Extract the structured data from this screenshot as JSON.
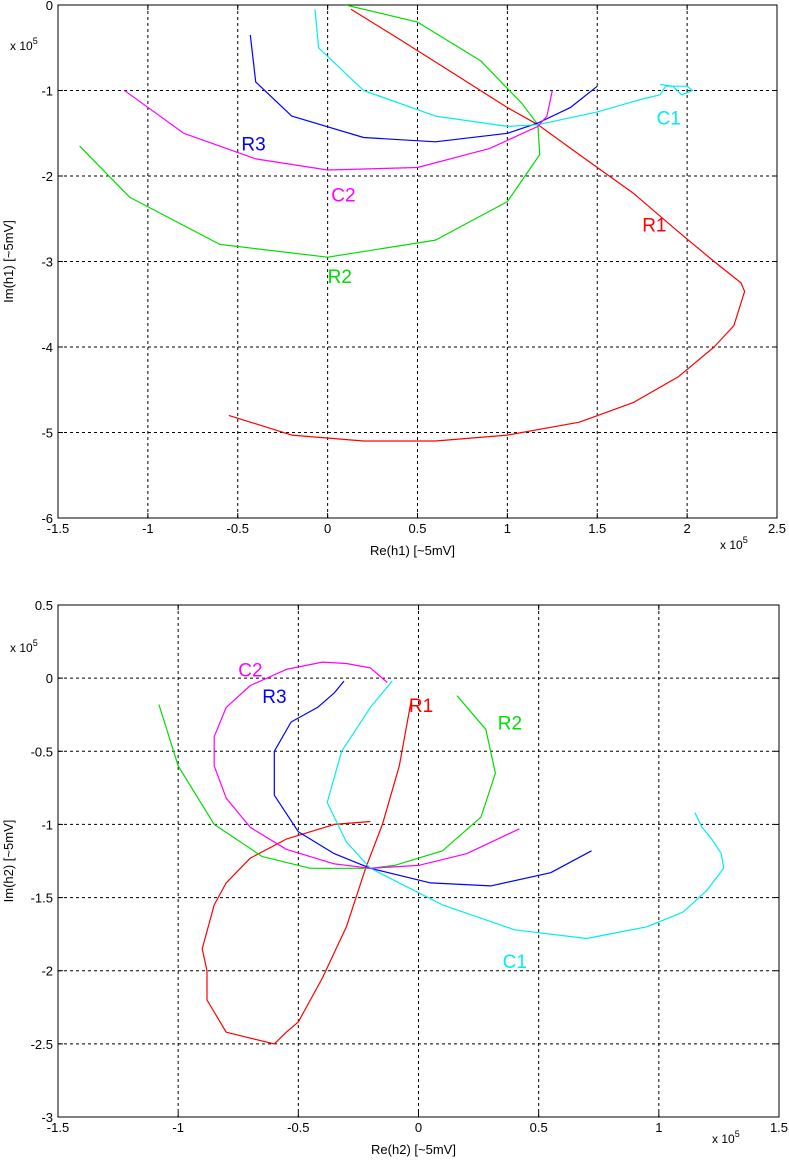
{
  "chart_data": [
    {
      "type": "line",
      "xlabel": "Re(h1)  [~5mV]",
      "ylabel": "Im(h1)  [~5mV]",
      "x_multiplier": "x 10",
      "x_multiplier_exp": "5",
      "y_multiplier": "x 10",
      "y_multiplier_exp": "5",
      "xlim": [
        -1.5,
        2.5
      ],
      "ylim": [
        -6,
        0
      ],
      "xticks": [
        -1.5,
        -1,
        -0.5,
        0,
        0.5,
        1,
        1.5,
        2,
        2.5
      ],
      "yticks": [
        -6,
        -5,
        -4,
        -3,
        -2,
        -1,
        0
      ],
      "grid": true,
      "series": [
        {
          "name": "R1",
          "color": "#ff0000",
          "label_at": [
            1.75,
            -2.65
          ],
          "x": [
            0.13,
            0.4,
            0.7,
            1.0,
            1.17,
            1.4,
            1.7,
            1.95,
            2.15,
            2.3,
            2.32,
            2.26,
            2.15,
            1.95,
            1.7,
            1.4,
            1.0,
            0.6,
            0.2,
            -0.2,
            -0.55
          ],
          "y": [
            -0.05,
            -0.4,
            -0.8,
            -1.2,
            -1.4,
            -1.75,
            -2.2,
            -2.65,
            -3.0,
            -3.25,
            -3.35,
            -3.75,
            -4.0,
            -4.35,
            -4.65,
            -4.88,
            -5.03,
            -5.1,
            -5.1,
            -5.03,
            -4.8
          ]
        },
        {
          "name": "R2",
          "color": "#00dd00",
          "label_at": [
            0.0,
            -3.25
          ],
          "x": [
            0.1,
            0.5,
            0.85,
            1.08,
            1.17,
            1.18,
            1.0,
            0.6,
            0.0,
            -0.6,
            -1.1,
            -1.38
          ],
          "y": [
            0.0,
            -0.2,
            -0.65,
            -1.15,
            -1.4,
            -1.75,
            -2.3,
            -2.75,
            -2.95,
            -2.8,
            -2.25,
            -1.65
          ]
        },
        {
          "name": "R3",
          "color": "#0000ff",
          "label_at": [
            -0.48,
            -1.7
          ],
          "x": [
            -0.43,
            -0.4,
            -0.2,
            0.2,
            0.6,
            1.0,
            1.17,
            1.35,
            1.5
          ],
          "y": [
            -0.35,
            -0.9,
            -1.3,
            -1.55,
            -1.6,
            -1.5,
            -1.38,
            -1.2,
            -0.95
          ]
        },
        {
          "name": "C1",
          "color": "#00eeee",
          "label_at": [
            1.83,
            -1.4
          ],
          "x": [
            -0.07,
            -0.05,
            0.2,
            0.6,
            1.0,
            1.17,
            1.5,
            1.75,
            1.85,
            1.88,
            2.0,
            2.03,
            1.97,
            1.92,
            1.85
          ],
          "y": [
            -0.05,
            -0.5,
            -1.0,
            -1.3,
            -1.42,
            -1.4,
            -1.25,
            -1.1,
            -1.05,
            -0.95,
            -0.95,
            -1.0,
            -1.05,
            -0.95,
            -0.93
          ]
        },
        {
          "name": "C2",
          "color": "#ff00ff",
          "label_at": [
            0.02,
            -2.3
          ],
          "x": [
            -1.13,
            -0.8,
            -0.4,
            0.0,
            0.5,
            0.9,
            1.17,
            1.22,
            1.25
          ],
          "y": [
            -1.0,
            -1.5,
            -1.8,
            -1.93,
            -1.9,
            -1.68,
            -1.42,
            -1.3,
            -1.0
          ]
        }
      ]
    },
    {
      "type": "line",
      "xlabel": "Re(h2)  [~5mV]",
      "ylabel": "Im(h2)  [~5mV]",
      "x_multiplier": "x 10",
      "x_multiplier_exp": "5",
      "y_multiplier": "x 10",
      "y_multiplier_exp": "5",
      "xlim": [
        -1.5,
        1.5
      ],
      "ylim": [
        -3,
        0.5
      ],
      "xticks": [
        -1.5,
        -1,
        -0.5,
        0,
        0.5,
        1,
        1.5
      ],
      "yticks": [
        -3,
        -2.5,
        -2,
        -1.5,
        -1,
        -0.5,
        0,
        0.5
      ],
      "grid": true,
      "series": [
        {
          "name": "R1",
          "color": "#ff0000",
          "label_at": [
            -0.04,
            -0.23
          ],
          "x": [
            -0.03,
            -0.08,
            -0.15,
            -0.22,
            -0.3,
            -0.4,
            -0.5,
            -0.55,
            -0.6,
            -0.8,
            -0.88,
            -0.88,
            -0.9,
            -0.85,
            -0.8,
            -0.7,
            -0.55,
            -0.35,
            -0.2
          ],
          "y": [
            -0.15,
            -0.6,
            -1.0,
            -1.3,
            -1.7,
            -2.05,
            -2.35,
            -2.42,
            -2.5,
            -2.42,
            -2.2,
            -2.0,
            -1.85,
            -1.55,
            -1.4,
            -1.23,
            -1.1,
            -1.0,
            -0.98
          ]
        },
        {
          "name": "R2",
          "color": "#00dd00",
          "label_at": [
            0.33,
            -0.35
          ],
          "x": [
            0.16,
            0.28,
            0.32,
            0.26,
            0.1,
            -0.1,
            -0.2,
            -0.45,
            -0.65,
            -0.85,
            -1.0,
            -1.08
          ],
          "y": [
            -0.12,
            -0.35,
            -0.65,
            -0.95,
            -1.18,
            -1.28,
            -1.3,
            -1.3,
            -1.22,
            -1.0,
            -0.6,
            -0.18
          ]
        },
        {
          "name": "R3",
          "color": "#0000ff",
          "label_at": [
            -0.65,
            -0.17
          ],
          "x": [
            -0.31,
            -0.35,
            -0.42,
            -0.53,
            -0.6,
            -0.6,
            -0.5,
            -0.35,
            -0.2,
            0.05,
            0.3,
            0.55,
            0.72
          ],
          "y": [
            -0.02,
            -0.1,
            -0.2,
            -0.3,
            -0.5,
            -0.8,
            -1.05,
            -1.2,
            -1.3,
            -1.4,
            -1.42,
            -1.33,
            -1.18
          ]
        },
        {
          "name": "C1",
          "color": "#00eeee",
          "label_at": [
            0.35,
            -1.98
          ],
          "x": [
            -0.11,
            -0.2,
            -0.32,
            -0.38,
            -0.3,
            -0.2,
            0.1,
            0.4,
            0.7,
            0.95,
            1.1,
            1.2,
            1.27,
            1.26,
            1.22,
            1.18,
            1.15
          ],
          "y": [
            -0.02,
            -0.2,
            -0.5,
            -0.85,
            -1.12,
            -1.3,
            -1.55,
            -1.72,
            -1.78,
            -1.7,
            -1.6,
            -1.45,
            -1.3,
            -1.2,
            -1.1,
            -1.02,
            -0.92
          ]
        },
        {
          "name": "C2",
          "color": "#ff00ff",
          "label_at": [
            -0.75,
            0.01
          ],
          "x": [
            -0.13,
            -0.2,
            -0.3,
            -0.4,
            -0.55,
            -0.7,
            -0.8,
            -0.85,
            -0.85,
            -0.8,
            -0.7,
            -0.55,
            -0.35,
            -0.2,
            0.0,
            0.2,
            0.42
          ],
          "y": [
            -0.03,
            0.07,
            0.1,
            0.11,
            0.06,
            -0.05,
            -0.2,
            -0.4,
            -0.6,
            -0.82,
            -1.02,
            -1.17,
            -1.27,
            -1.3,
            -1.28,
            -1.2,
            -1.03
          ]
        }
      ]
    }
  ]
}
